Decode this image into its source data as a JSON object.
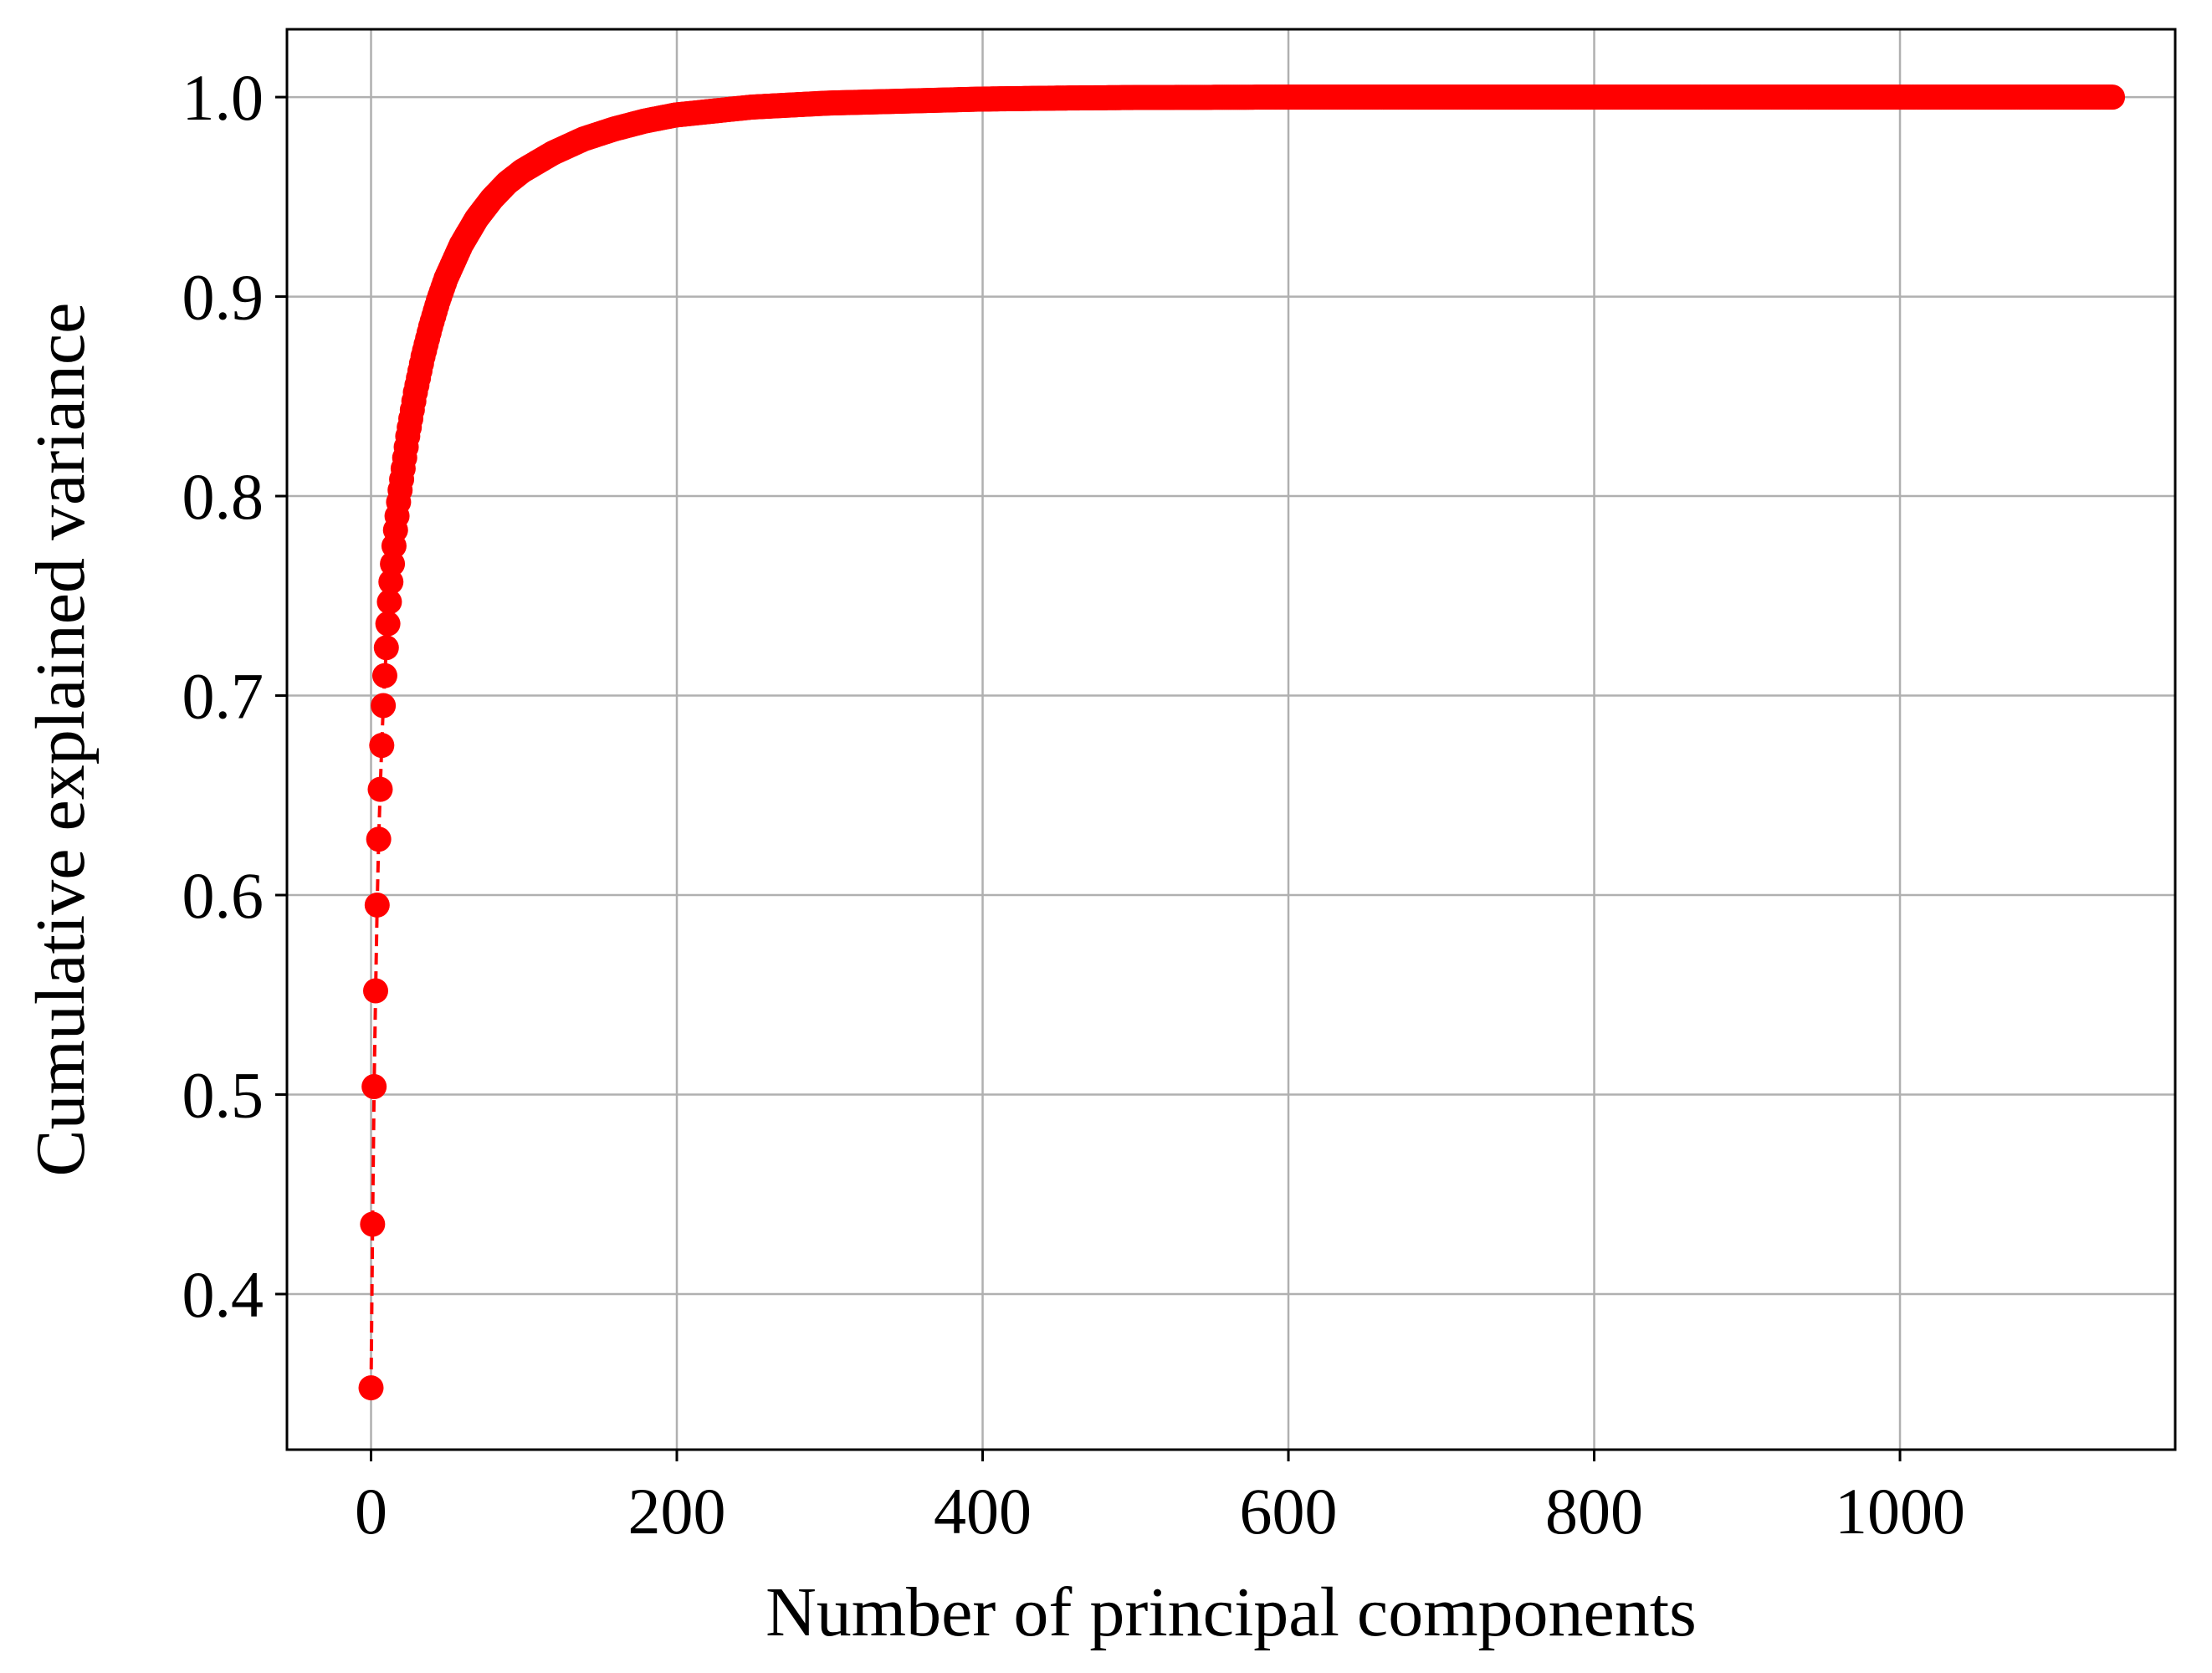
{
  "chart_data": {
    "type": "line",
    "xlabel": "Number of principal components",
    "ylabel": "Cumulative explained variance",
    "xlim": [
      -55,
      1180
    ],
    "ylim": [
      0.322,
      1.034
    ],
    "xticks": [
      0,
      200,
      400,
      600,
      800,
      1000
    ],
    "xtick_labels": [
      "0",
      "200",
      "400",
      "600",
      "800",
      "1000"
    ],
    "yticks": [
      0.4,
      0.5,
      0.6,
      0.7,
      0.8,
      0.9,
      1.0
    ],
    "ytick_labels": [
      "0.4",
      "0.5",
      "0.6",
      "0.7",
      "0.8",
      "0.9",
      "1.0"
    ],
    "grid": true,
    "legend": "none",
    "color": "#ff0000",
    "line_style": "dashed",
    "marker": "circle",
    "series": [
      {
        "n_points": 1140,
        "x": [
          1,
          2,
          3,
          4,
          5,
          6,
          7,
          8,
          9,
          10,
          11,
          12,
          13,
          14,
          15,
          16,
          17,
          18,
          19,
          20,
          25,
          30,
          35,
          40,
          45,
          50,
          60,
          70,
          80,
          90,
          100,
          120,
          140,
          160,
          180,
          200,
          250,
          300,
          350,
          400,
          450,
          500,
          600,
          700,
          800,
          900,
          1000,
          1100,
          1140
        ],
        "y": [
          0.353,
          0.435,
          0.504,
          0.552,
          0.595,
          0.628,
          0.653,
          0.675,
          0.695,
          0.71,
          0.724,
          0.736,
          0.747,
          0.757,
          0.766,
          0.775,
          0.783,
          0.79,
          0.797,
          0.803,
          0.83,
          0.852,
          0.87,
          0.885,
          0.898,
          0.909,
          0.926,
          0.939,
          0.949,
          0.957,
          0.963,
          0.972,
          0.979,
          0.984,
          0.988,
          0.991,
          0.995,
          0.997,
          0.998,
          0.999,
          0.9995,
          0.9998,
          1.0,
          1.0,
          1.0,
          1.0,
          1.0,
          1.0,
          1.0
        ]
      }
    ]
  }
}
